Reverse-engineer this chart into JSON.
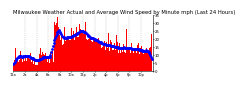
{
  "title": "Milwaukee Weather Actual and Average Wind Speed by Minute mph (Last 24 Hours)",
  "title_fontsize": 3.8,
  "background_color": "#ffffff",
  "bar_color": "#ff0000",
  "avg_color": "#0000ff",
  "grid_color": "#b0b0b0",
  "ylim": [
    0,
    35
  ],
  "xlim": [
    0,
    1440
  ],
  "num_points": 1440,
  "ytick_values": [
    0,
    5,
    10,
    15,
    20,
    25,
    30,
    35
  ],
  "ytick_labels": [
    "0",
    "5",
    "10",
    "15",
    "20",
    "25",
    "30",
    "35"
  ],
  "vline_positions": [
    120,
    240,
    360,
    480,
    600,
    720,
    840,
    960,
    1080,
    1200,
    1320
  ],
  "xtick_positions": [
    0,
    120,
    240,
    360,
    480,
    600,
    720,
    840,
    960,
    1080,
    1200,
    1320,
    1440
  ],
  "xtick_labels": [
    "12a",
    "2a",
    "4a",
    "6a",
    "8a",
    "10a",
    "12p",
    "2p",
    "4p",
    "6p",
    "8p",
    "10p",
    ""
  ],
  "seed": 7
}
